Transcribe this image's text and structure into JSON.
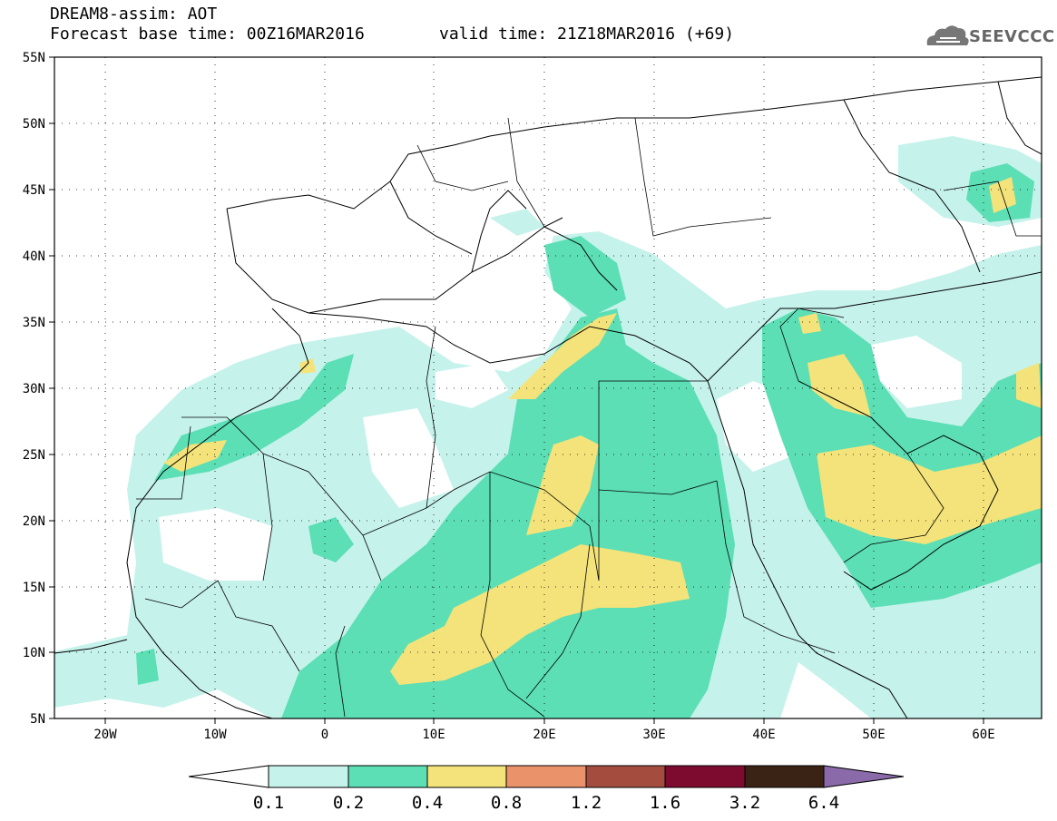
{
  "header": {
    "title": "DREAM8-assim: AOT",
    "base_time": "Forecast base time: 00Z16MAR2016",
    "valid_time": "valid time: 21Z18MAR2016 (+69)"
  },
  "logo": {
    "text": "SEEVCCC",
    "icon": "cloud-icon"
  },
  "map": {
    "lon_range": [
      -25,
      65
    ],
    "lat_range": [
      5,
      55
    ],
    "lat_ticks": [
      "55N",
      "50N",
      "45N",
      "40N",
      "35N",
      "30N",
      "25N",
      "20N",
      "15N",
      "10N",
      "5N"
    ],
    "lon_ticks": [
      "20W",
      "10W",
      "0",
      "10E",
      "20E",
      "30E",
      "40E",
      "50E",
      "60E"
    ]
  },
  "colorbar": {
    "labels": [
      "0.1",
      "0.2",
      "0.4",
      "0.8",
      "1.2",
      "1.6",
      "3.2",
      "6.4"
    ],
    "colors": [
      "#ffffff",
      "#c6f2ec",
      "#5cdfb5",
      "#f4e37a",
      "#ea926a",
      "#a44d3e",
      "#7d0a2f",
      "#3a2214",
      "#8a6aa8"
    ]
  }
}
